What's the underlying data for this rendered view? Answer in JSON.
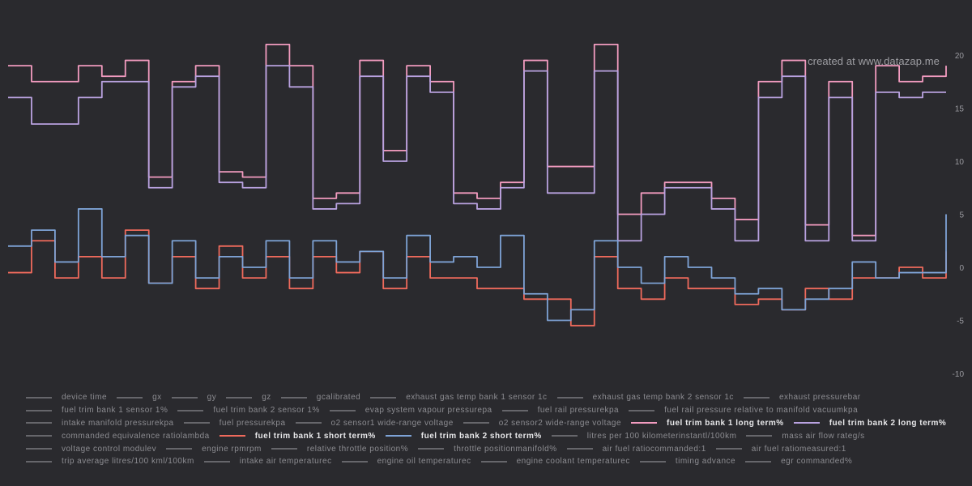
{
  "watermark": "created at www.datazap.me",
  "colors": {
    "background": "#2a2a2e",
    "grid": "#3a3a40",
    "tick_text": "#9a9aa0",
    "inactive_legend": "#66666b"
  },
  "chart_data": {
    "type": "line",
    "title": "",
    "xlabel": "",
    "ylabel": "",
    "ylim": [
      -10,
      20
    ],
    "y_ticks": [
      20,
      15,
      10,
      5,
      0,
      -5,
      -10
    ],
    "y_axis_position": "right",
    "grid": false,
    "legend_position": "bottom",
    "x": [
      0,
      5,
      10,
      15,
      20,
      25,
      30,
      35,
      40,
      45,
      50,
      55,
      60,
      65,
      70,
      75,
      80,
      85,
      90,
      95,
      100,
      105,
      110,
      115,
      120,
      125,
      130,
      135,
      140,
      145,
      150,
      155,
      160,
      165,
      170,
      175,
      180,
      185,
      190,
      195,
      200
    ],
    "series": [
      {
        "name": "fuel trim bank 1 long term%",
        "color": "#f29bbf",
        "values": [
          19,
          17.5,
          17.5,
          19,
          18,
          19.5,
          8.5,
          17.5,
          19,
          9,
          8.5,
          21,
          19,
          6.5,
          7,
          19.5,
          11,
          19,
          17.5,
          7,
          6.5,
          8,
          19.5,
          9.5,
          9.5,
          21,
          5,
          7,
          8,
          8,
          6.5,
          4.5,
          17.5,
          19.5,
          4,
          17.5,
          3,
          19,
          17.5,
          18,
          19
        ]
      },
      {
        "name": "fuel trim bank 2 long term%",
        "color": "#b9a2e0",
        "values": [
          16,
          13.5,
          13.5,
          16,
          17.5,
          17.5,
          7.5,
          17,
          18,
          8,
          7.5,
          19,
          17,
          5.5,
          6,
          18,
          10,
          18,
          16.5,
          6,
          5.5,
          7.5,
          18.5,
          7,
          7,
          18.5,
          2.5,
          5,
          7.5,
          7.5,
          5.5,
          2.5,
          16,
          18,
          2.5,
          16,
          2.5,
          16.5,
          16,
          16.5,
          16.5
        ]
      },
      {
        "name": "fuel trim bank 1 short term%",
        "color": "#ef6a5c",
        "values": [
          -0.5,
          2.5,
          -1,
          1,
          -1,
          3.5,
          -1.5,
          1,
          -2,
          2,
          -1,
          1,
          -2,
          1,
          -0.5,
          1.5,
          -2,
          1,
          -1,
          -1,
          -2,
          -2,
          -3,
          -3,
          -5.5,
          1,
          -2,
          -3,
          -1,
          -2,
          -2,
          -3.5,
          -3,
          -4,
          -2,
          -3,
          -1,
          -1,
          0,
          -1,
          1.5
        ]
      },
      {
        "name": "fuel trim bank 2 short term%",
        "color": "#7ea3d6",
        "values": [
          2,
          3.5,
          0.5,
          5.5,
          1,
          3,
          -1.5,
          2.5,
          -1,
          1,
          0,
          2.5,
          -1,
          2.5,
          0.5,
          1.5,
          -1,
          3,
          0.5,
          1,
          0,
          3,
          -2.5,
          -5,
          -4,
          2.5,
          0,
          -1.5,
          1,
          0,
          -1,
          -2.5,
          -2,
          -4,
          -3,
          -2,
          0.5,
          -1,
          -0.5,
          -0.5,
          5
        ]
      }
    ]
  },
  "legend_rows": [
    [
      {
        "label": "device time",
        "series": ""
      },
      {
        "label": "gx",
        "series": ""
      },
      {
        "label": "gy",
        "series": ""
      },
      {
        "label": "gz",
        "series": ""
      },
      {
        "label": "gcalibrated",
        "series": ""
      },
      {
        "label": "exhaust gas temp bank 1 sensor 1c",
        "series": ""
      },
      {
        "label": "exhaust gas temp bank 2 sensor 1c",
        "series": ""
      },
      {
        "label": "exhaust pressurebar",
        "series": ""
      }
    ],
    [
      {
        "label": "fuel trim bank 1 sensor 1%",
        "series": ""
      },
      {
        "label": "fuel trim bank 2 sensor 1%",
        "series": ""
      },
      {
        "label": "evap system vapour pressurepa",
        "series": ""
      },
      {
        "label": "fuel rail pressurekpa",
        "series": ""
      },
      {
        "label": "fuel rail pressure relative to manifold vacuumkpa",
        "series": ""
      }
    ],
    [
      {
        "label": "intake manifold pressurekpa",
        "series": ""
      },
      {
        "label": "fuel pressurekpa",
        "series": ""
      },
      {
        "label": "o2 sensor1 wide-range voltage",
        "series": ""
      },
      {
        "label": "o2 sensor2 wide-range voltage",
        "series": ""
      },
      {
        "label": "fuel trim bank 1 long term%",
        "series": "fuel trim bank 1 long term%"
      },
      {
        "label": "fuel trim bank 2 long term%",
        "series": "fuel trim bank 2 long term%"
      }
    ],
    [
      {
        "label": "commanded equivalence ratiolambda",
        "series": ""
      },
      {
        "label": "fuel trim bank 1 short term%",
        "series": "fuel trim bank 1 short term%"
      },
      {
        "label": "fuel trim bank 2 short term%",
        "series": "fuel trim bank 2 short term%"
      },
      {
        "label": "litres per 100 kilometerinstantl/100km",
        "series": ""
      },
      {
        "label": "mass air flow rateg/s",
        "series": ""
      }
    ],
    [
      {
        "label": "voltage control modulev",
        "series": ""
      },
      {
        "label": "engine rpmrpm",
        "series": ""
      },
      {
        "label": "relative throttle position%",
        "series": ""
      },
      {
        "label": "throttle positionmanifold%",
        "series": ""
      },
      {
        "label": "air fuel ratiocommanded:1",
        "series": ""
      },
      {
        "label": "air fuel ratiomeasured:1",
        "series": ""
      }
    ],
    [
      {
        "label": "trip average litres/100 kml/100km",
        "series": ""
      },
      {
        "label": "intake air temperaturec",
        "series": ""
      },
      {
        "label": "engine oil temperaturec",
        "series": ""
      },
      {
        "label": "engine coolant temperaturec",
        "series": ""
      },
      {
        "label": "timing advance",
        "series": ""
      },
      {
        "label": "egr commanded%",
        "series": ""
      }
    ]
  ]
}
